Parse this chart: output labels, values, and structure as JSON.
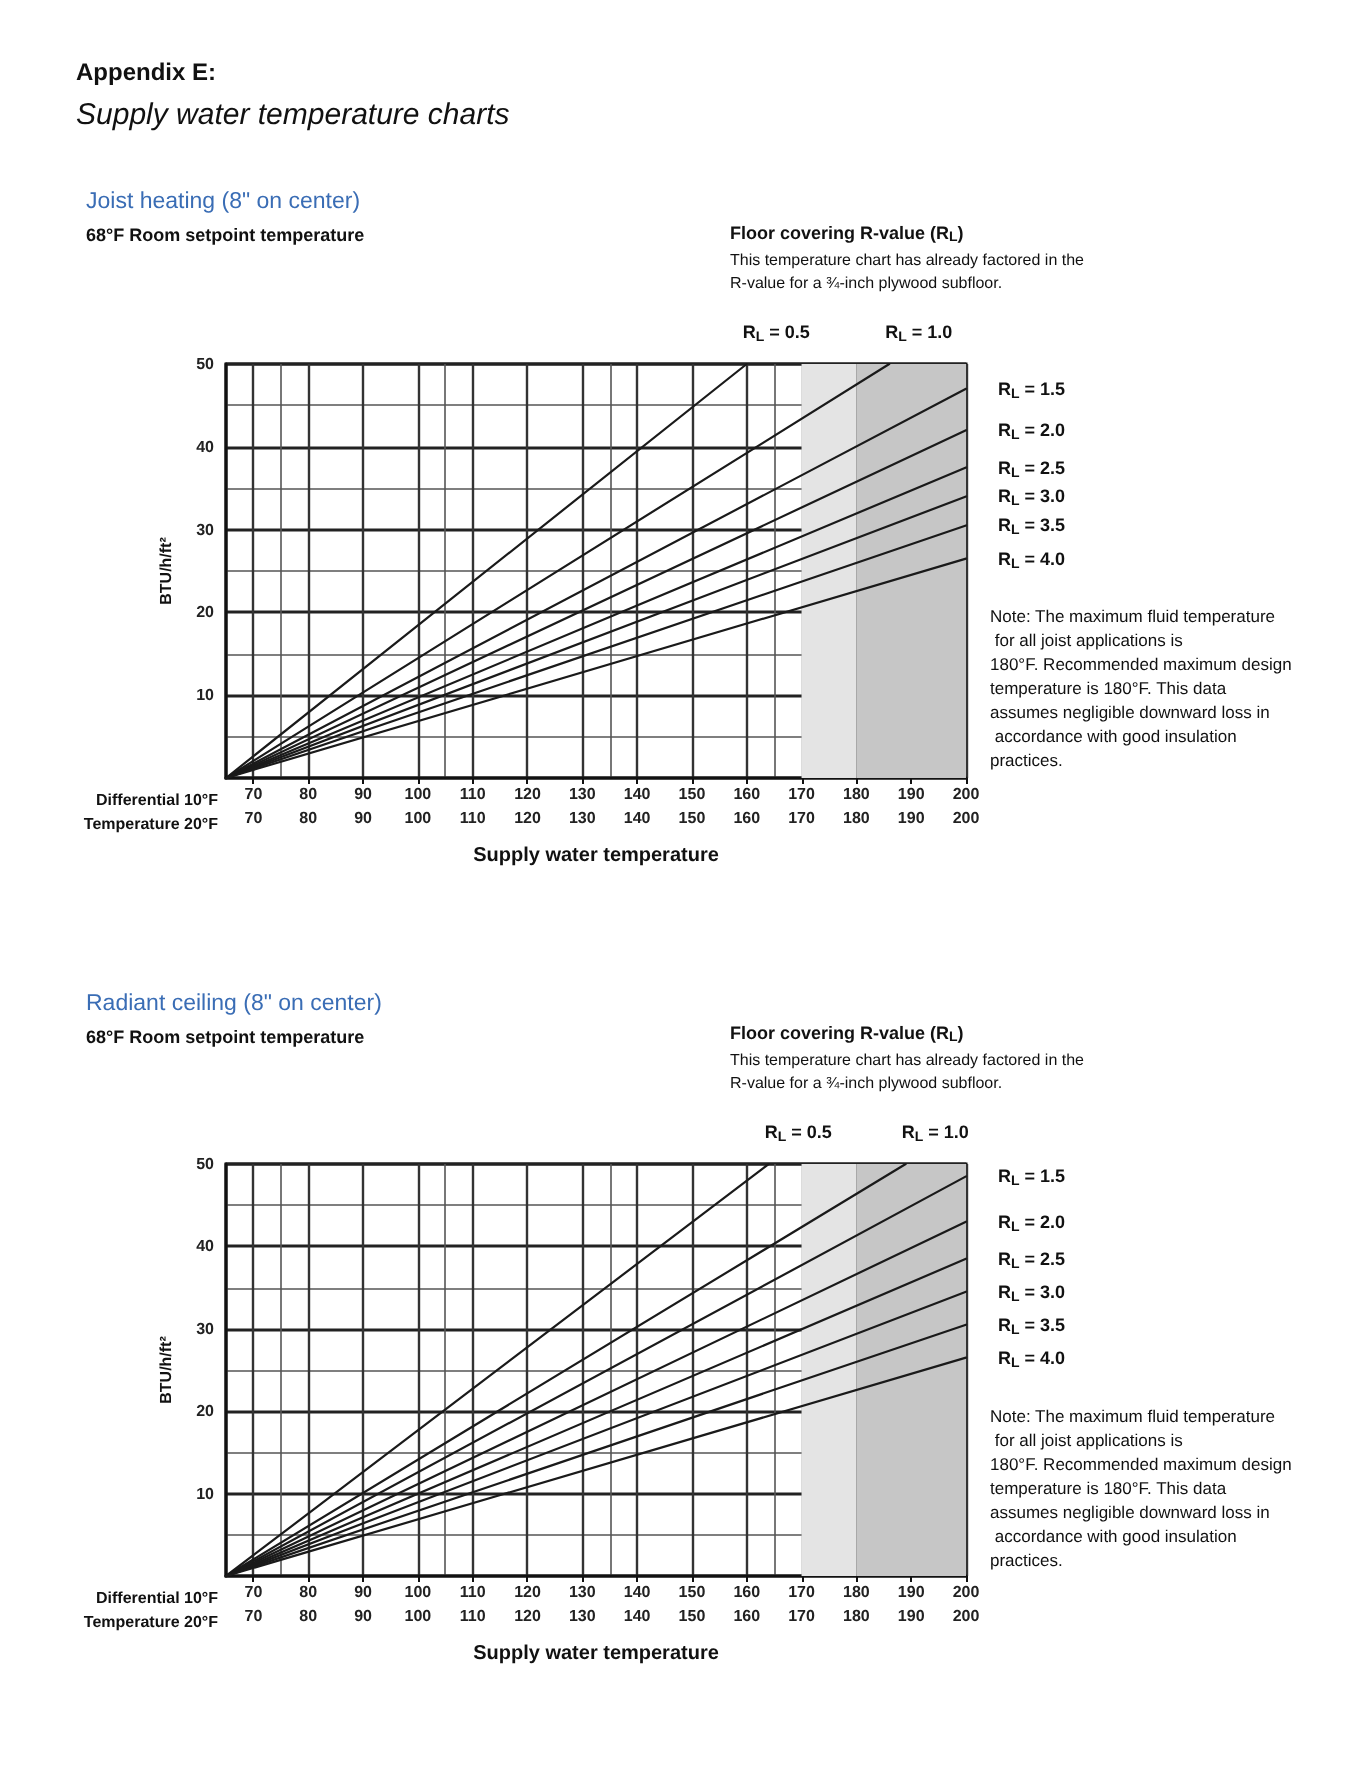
{
  "chart_data": [
    {
      "type": "line",
      "title": "Joist heating (8\" on center)",
      "subtitle": "68°F Room setpoint temperature",
      "xlabel": "Supply water temperature",
      "ylabel": "BTU/h/ft²",
      "annotations": [
        "Appendix E:",
        "Supply water temperature charts",
        "Floor covering R-value (R$_{L}$)",
        "This temperature chart has already factored in the R-value for a ¾-inch plywood subfloor.",
        "Note: The maximum fluid temperature for all joist applications is 180°F. Recommended maximum design temperature is 180°F. This data assumes negligible downward loss in accordance with good insulation practices.",
        "Differential 10°F",
        "Temperature 20°F"
      ],
      "series": [
        {
          "name": "R$_{L}$ = 0.5",
          "color": "#1a1a1a",
          "x": [
            65,
            160
          ],
          "values": [
            0,
            50
          ]
        },
        {
          "name": "R$_{L}$ = 1.0",
          "color": "#1a1a1a",
          "x": [
            65,
            186
          ],
          "values": [
            0,
            50
          ]
        },
        {
          "name": "R$_{L}$ = 1.5",
          "color": "#1a1a1a",
          "x": [
            65,
            200
          ],
          "values": [
            0,
            47
          ]
        },
        {
          "name": "R$_{L}$ = 2.0",
          "color": "#1a1a1a",
          "x": [
            65,
            200
          ],
          "values": [
            0,
            42
          ]
        },
        {
          "name": "R$_{L}$ = 2.5",
          "color": "#1a1a1a",
          "x": [
            65,
            200
          ],
          "values": [
            0,
            37.5
          ]
        },
        {
          "name": "R$_{L}$ = 3.0",
          "color": "#1a1a1a",
          "x": [
            65,
            200
          ],
          "values": [
            0,
            34
          ]
        },
        {
          "name": "R$_{L}$ = 3.5",
          "color": "#1a1a1a",
          "x": [
            65,
            200
          ],
          "values": [
            0,
            30.5
          ]
        },
        {
          "name": "R$_{L}$ = 4.0",
          "color": "#1a1a1a",
          "x": [
            65,
            200
          ],
          "values": [
            0,
            26.5
          ]
        }
      ],
      "bands": [
        {
          "axis": "x",
          "from": 170,
          "to": 180,
          "color": "#e4e4e4"
        },
        {
          "axis": "x",
          "from": 180,
          "to": 200,
          "color": "#c6c6c6"
        }
      ],
      "xlim": [
        65,
        200
      ],
      "xticks": [
        70,
        80,
        90,
        100,
        110,
        120,
        130,
        140,
        150,
        160,
        170,
        180,
        190,
        200
      ],
      "x2lim": [
        65,
        200
      ],
      "x2ticks": [
        70,
        80,
        90,
        100,
        110,
        120,
        130,
        140,
        150,
        160,
        170,
        180,
        190,
        200
      ],
      "ylim": [
        0,
        50
      ],
      "yticks": [
        10,
        20,
        30,
        40,
        50
      ],
      "grid": true,
      "legend": false,
      "marker": "none",
      "line_style": "solid"
    },
    {
      "type": "line",
      "title": "Radiant ceiling (8\" on center)",
      "subtitle": "68°F Room setpoint temperature",
      "xlabel": "Supply water temperature",
      "ylabel": "BTU/h/ft²",
      "annotations": [
        "Floor covering R-value (R$_{L}$)",
        "This temperature chart has already factored in the R-value for a ¾-inch plywood subfloor.",
        "Note: The maximum fluid temperature for all joist applications is 180°F. Recommended maximum design temperature is 180°F. This data assumes negligible downward loss in accordance with good insulation practices.",
        "Differential 10°F",
        "Temperature 20°F"
      ],
      "series": [
        {
          "name": "R$_{L}$ = 0.5",
          "color": "#1a1a1a",
          "x": [
            65,
            164
          ],
          "values": [
            0,
            50
          ]
        },
        {
          "name": "R$_{L}$ = 1.0",
          "color": "#1a1a1a",
          "x": [
            65,
            189
          ],
          "values": [
            0,
            50
          ]
        },
        {
          "name": "R$_{L}$ = 1.5",
          "color": "#1a1a1a",
          "x": [
            65,
            200
          ],
          "values": [
            0,
            48.5
          ]
        },
        {
          "name": "R$_{L}$ = 2.0",
          "color": "#1a1a1a",
          "x": [
            65,
            200
          ],
          "values": [
            0,
            43
          ]
        },
        {
          "name": "R$_{L}$ = 2.5",
          "color": "#1a1a1a",
          "x": [
            65,
            200
          ],
          "values": [
            0,
            38.5
          ]
        },
        {
          "name": "R$_{L}$ = 3.0",
          "color": "#1a1a1a",
          "x": [
            65,
            200
          ],
          "values": [
            0,
            34.5
          ]
        },
        {
          "name": "R$_{L}$ = 3.5",
          "color": "#1a1a1a",
          "x": [
            65,
            200
          ],
          "values": [
            0,
            30.5
          ]
        },
        {
          "name": "R$_{L}$ = 4.0",
          "color": "#1a1a1a",
          "x": [
            65,
            200
          ],
          "values": [
            0,
            26.5
          ]
        }
      ],
      "bands": [
        {
          "axis": "x",
          "from": 170,
          "to": 180,
          "color": "#e4e4e4"
        },
        {
          "axis": "x",
          "from": 180,
          "to": 200,
          "color": "#c6c6c6"
        }
      ],
      "xlim": [
        65,
        200
      ],
      "xticks": [
        70,
        80,
        90,
        100,
        110,
        120,
        130,
        140,
        150,
        160,
        170,
        180,
        190,
        200
      ],
      "x2lim": [
        65,
        200
      ],
      "x2ticks": [
        70,
        80,
        90,
        100,
        110,
        120,
        130,
        140,
        150,
        160,
        170,
        180,
        190,
        200
      ],
      "ylim": [
        0,
        50
      ],
      "yticks": [
        10,
        20,
        30,
        40,
        50
      ],
      "grid": true,
      "legend": false,
      "marker": "none",
      "line_style": "solid"
    }
  ]
}
